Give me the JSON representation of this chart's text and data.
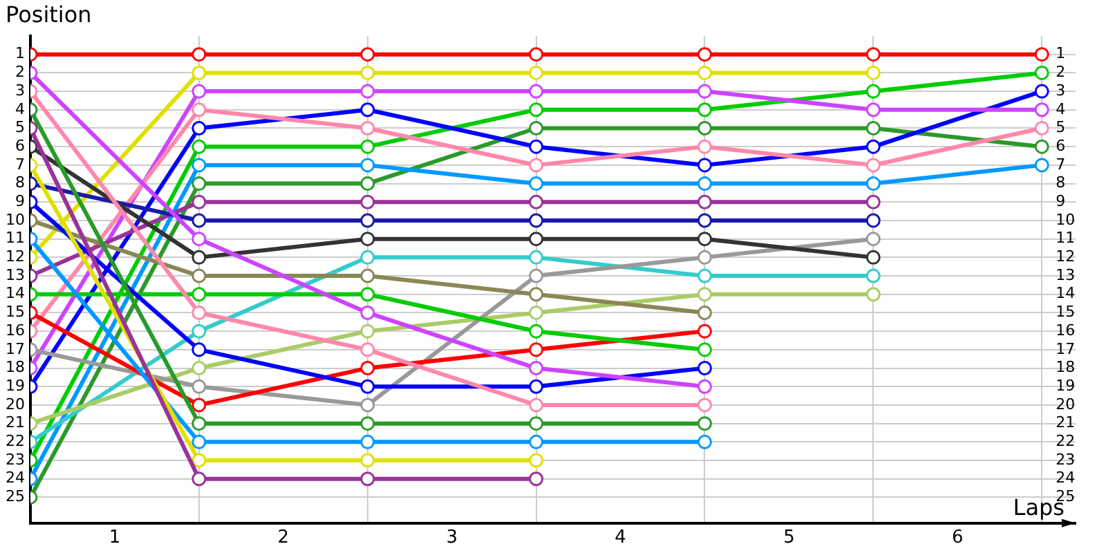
{
  "chart_data": {
    "type": "line",
    "xlabel": "Laps",
    "ylabel": "Position",
    "x": [
      0,
      1,
      2,
      3,
      4,
      5,
      6
    ],
    "xlim": [
      0,
      6.2
    ],
    "xticks": [
      {
        "value": 0.5,
        "label": "1"
      },
      {
        "value": 1,
        "label": null
      },
      {
        "value": 1.5,
        "label": "2"
      },
      {
        "value": 2,
        "label": null
      },
      {
        "value": 2.5,
        "label": "3"
      },
      {
        "value": 3,
        "label": null
      },
      {
        "value": 3.5,
        "label": "4"
      },
      {
        "value": 4,
        "label": null
      },
      {
        "value": 4.5,
        "label": "5"
      },
      {
        "value": 5,
        "label": null
      },
      {
        "value": 5.5,
        "label": "6"
      },
      {
        "value": 6,
        "label": null
      }
    ],
    "ylim": [
      26.4,
      0
    ],
    "yticks": [
      1,
      2,
      3,
      4,
      5,
      6,
      7,
      8,
      9,
      10,
      11,
      12,
      13,
      14,
      15,
      16,
      17,
      18,
      19,
      20,
      21,
      22,
      23,
      24,
      25
    ],
    "y2lim": [
      26.4,
      0
    ],
    "y2ticks": [
      1,
      2,
      3,
      4,
      5,
      6,
      7,
      8,
      9,
      10,
      11,
      12,
      13,
      14,
      15,
      16,
      17,
      18,
      19,
      20,
      21,
      22,
      23,
      24,
      25
    ],
    "grid": true,
    "legend": false,
    "marker": "circle",
    "line_style": "solid",
    "series": [
      {
        "color": "#ff0000",
        "values": [
          1,
          1,
          1,
          1,
          1,
          1,
          1
        ]
      },
      {
        "color": "#cc44ff",
        "values": [
          2,
          11,
          15,
          18,
          19,
          null,
          null
        ]
      },
      {
        "color": "#ff88aa",
        "values": [
          3,
          15,
          17,
          20,
          20,
          null,
          null
        ]
      },
      {
        "color": "#2a9a2a",
        "values": [
          4,
          21,
          21,
          21,
          21,
          null,
          null
        ]
      },
      {
        "color": "#993399",
        "values": [
          5,
          24,
          24,
          24,
          null,
          null,
          null
        ]
      },
      {
        "color": "#333333",
        "values": [
          6,
          12,
          11,
          11,
          11,
          12,
          null
        ]
      },
      {
        "color": "#e0e000",
        "values": [
          7,
          23,
          23,
          23,
          null,
          null,
          null
        ]
      },
      {
        "color": "#1a1aaa",
        "values": [
          8,
          10,
          10,
          10,
          10,
          10,
          null
        ]
      },
      {
        "color": "#0000ff",
        "values": [
          9,
          17,
          19,
          19,
          18,
          null,
          null
        ]
      },
      {
        "color": "#888855",
        "values": [
          10,
          13,
          13,
          14,
          15,
          null,
          null
        ]
      },
      {
        "color": "#0099ff",
        "values": [
          11,
          22,
          22,
          22,
          22,
          null,
          null
        ]
      },
      {
        "color": "#e0e000",
        "values": [
          12,
          2,
          2,
          2,
          2,
          2,
          null
        ]
      },
      {
        "color": "#993399",
        "values": [
          13,
          9,
          9,
          9,
          9,
          9,
          null
        ]
      },
      {
        "color": "#00cc00",
        "values": [
          14,
          14,
          14,
          16,
          17,
          null,
          null
        ]
      },
      {
        "color": "#ff0000",
        "values": [
          15,
          20,
          18,
          17,
          16,
          null,
          null
        ]
      },
      {
        "color": "#ff88aa",
        "values": [
          16,
          4,
          5,
          7,
          6,
          7,
          5
        ]
      },
      {
        "color": "#999999",
        "values": [
          17,
          19,
          20,
          13,
          12,
          11,
          null
        ]
      },
      {
        "color": "#cc44ff",
        "values": [
          18,
          3,
          3,
          3,
          3,
          4,
          4
        ]
      },
      {
        "color": "#0000ff",
        "values": [
          19,
          5,
          4,
          6,
          7,
          6,
          3
        ]
      },
      {
        "color": "#aacc66",
        "values": [
          21,
          18,
          16,
          15,
          14,
          14,
          null
        ]
      },
      {
        "color": "#33cccc",
        "values": [
          22,
          16,
          12,
          12,
          13,
          13,
          null
        ]
      },
      {
        "color": "#00cc00",
        "values": [
          23,
          6,
          6,
          4,
          4,
          3,
          2
        ]
      },
      {
        "color": "#0099ff",
        "values": [
          24,
          7,
          7,
          8,
          8,
          8,
          7
        ]
      },
      {
        "color": "#2a9a2a",
        "values": [
          25,
          8,
          8,
          5,
          5,
          5,
          6
        ]
      }
    ]
  }
}
